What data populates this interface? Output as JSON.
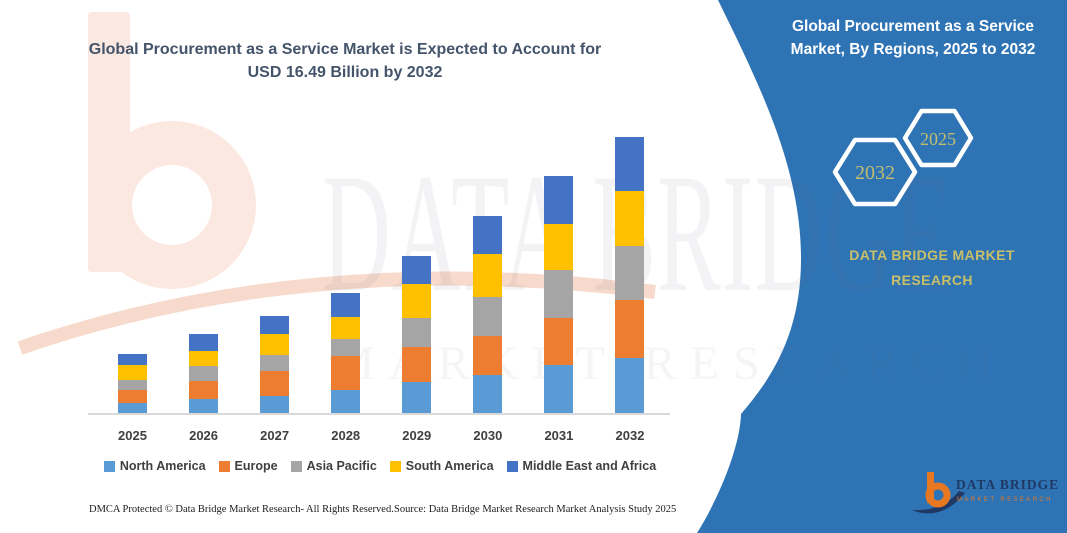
{
  "header": {
    "title_line1": "Global Procurement as a Service Market is Expected to Account for",
    "title_line2": "USD 16.49 Billion by 2032",
    "title_color": "#44546A"
  },
  "side_panel": {
    "panel_color": "#2E74B5",
    "title_line1": "Global Procurement as a Service",
    "title_line2": "Market, By Regions, 2025 to 2032",
    "hexagon_back_label": "2032",
    "hexagon_front_label": "2025",
    "hexagon_label_color": "#C2BD6E",
    "brand_line1": "DATA BRIDGE MARKET",
    "brand_line2": "RESEARCH",
    "brand_color": "#C8BF68"
  },
  "logo": {
    "name": "DATA BRIDGE",
    "tagline": "MARKET RESEARCH",
    "b_color": "#E87722",
    "text_color": "#1F3864"
  },
  "watermark": {
    "line1": "DATA BRIDGE",
    "line2": "MARKET RESEARCH"
  },
  "footer": {
    "dmca": "DMCA Protected © Data Bridge Market Research- All Rights Reserved.",
    "source": "Source: Data Bridge Market Research Market Analysis Study 2025"
  },
  "chart_data": {
    "type": "bar",
    "stacked": true,
    "title": "Global Procurement as a Service Market, By Regions, 2025 to 2032",
    "unit": "USD Billion",
    "categories": [
      "2025",
      "2026",
      "2027",
      "2028",
      "2029",
      "2030",
      "2031",
      "2032"
    ],
    "series": [
      {
        "name": "North America",
        "color": "#5B9BD5",
        "values": [
          0.6,
          0.85,
          1.0,
          1.4,
          1.85,
          2.3,
          2.85,
          3.3
        ]
      },
      {
        "name": "Europe",
        "color": "#ED7D31",
        "values": [
          0.8,
          1.05,
          1.5,
          2.0,
          2.1,
          2.3,
          2.85,
          3.45
        ]
      },
      {
        "name": "Asia Pacific",
        "color": "#A5A5A5",
        "values": [
          0.6,
          0.9,
          0.95,
          1.0,
          1.75,
          2.35,
          2.85,
          3.25
        ]
      },
      {
        "name": "South America",
        "color": "#FFC000",
        "values": [
          0.85,
          0.9,
          1.25,
          1.35,
          2.0,
          2.55,
          2.75,
          3.3
        ]
      },
      {
        "name": "Middle East and Africa",
        "color": "#4472C4",
        "values": [
          0.7,
          1.0,
          1.1,
          1.4,
          1.7,
          2.25,
          2.85,
          3.19
        ]
      }
    ],
    "totals_estimated": [
      3.55,
      4.7,
      5.8,
      7.15,
      9.4,
      11.75,
      14.15,
      16.49
    ],
    "ylim": [
      0,
      16.49
    ],
    "grid": false,
    "y_axis_shown": false,
    "legend_position": "bottom"
  }
}
